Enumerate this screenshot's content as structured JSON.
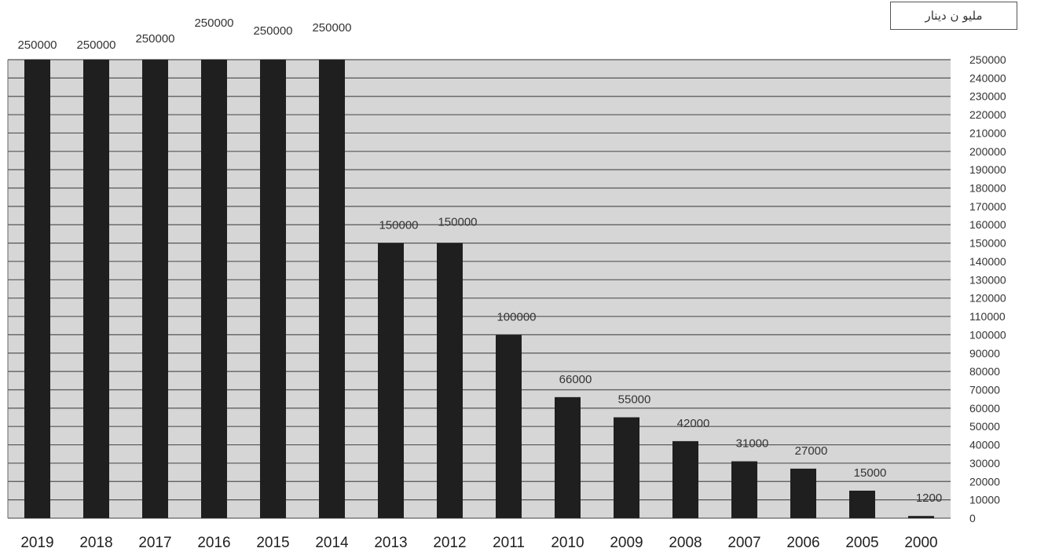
{
  "unit_label": "مليو ن دينار",
  "chart_data": {
    "type": "bar",
    "categories": [
      "2019",
      "2018",
      "2017",
      "2016",
      "2015",
      "2014",
      "2013",
      "2012",
      "2011",
      "2010",
      "2009",
      "2008",
      "2007",
      "2006",
      "2005",
      "2000"
    ],
    "values": [
      250000,
      250000,
      250000,
      250000,
      250000,
      250000,
      150000,
      150000,
      100000,
      66000,
      55000,
      42000,
      31000,
      27000,
      15000,
      1200
    ],
    "data_labels": [
      "250000",
      "250000",
      "250000",
      "250000",
      "250000",
      "250000",
      "150000",
      "150000",
      "100000",
      "66000",
      "55000",
      "42000",
      "31000",
      "27000",
      "15000",
      "1200"
    ],
    "y_ticks": [
      "0",
      "10000",
      "20000",
      "30000",
      "40000",
      "50000",
      "60000",
      "70000",
      "80000",
      "90000",
      "100000",
      "110000",
      "120000",
      "130000",
      "140000",
      "150000",
      "160000",
      "170000",
      "180000",
      "190000",
      "200000",
      "210000",
      "220000",
      "230000",
      "240000",
      "250000"
    ],
    "ylim": [
      0,
      250000
    ],
    "y_axis_side": "right",
    "grid": true,
    "colors": {
      "bar": "#1f1f1f",
      "plot_background": "#d6d6d6",
      "grid_line": "#555555"
    }
  }
}
